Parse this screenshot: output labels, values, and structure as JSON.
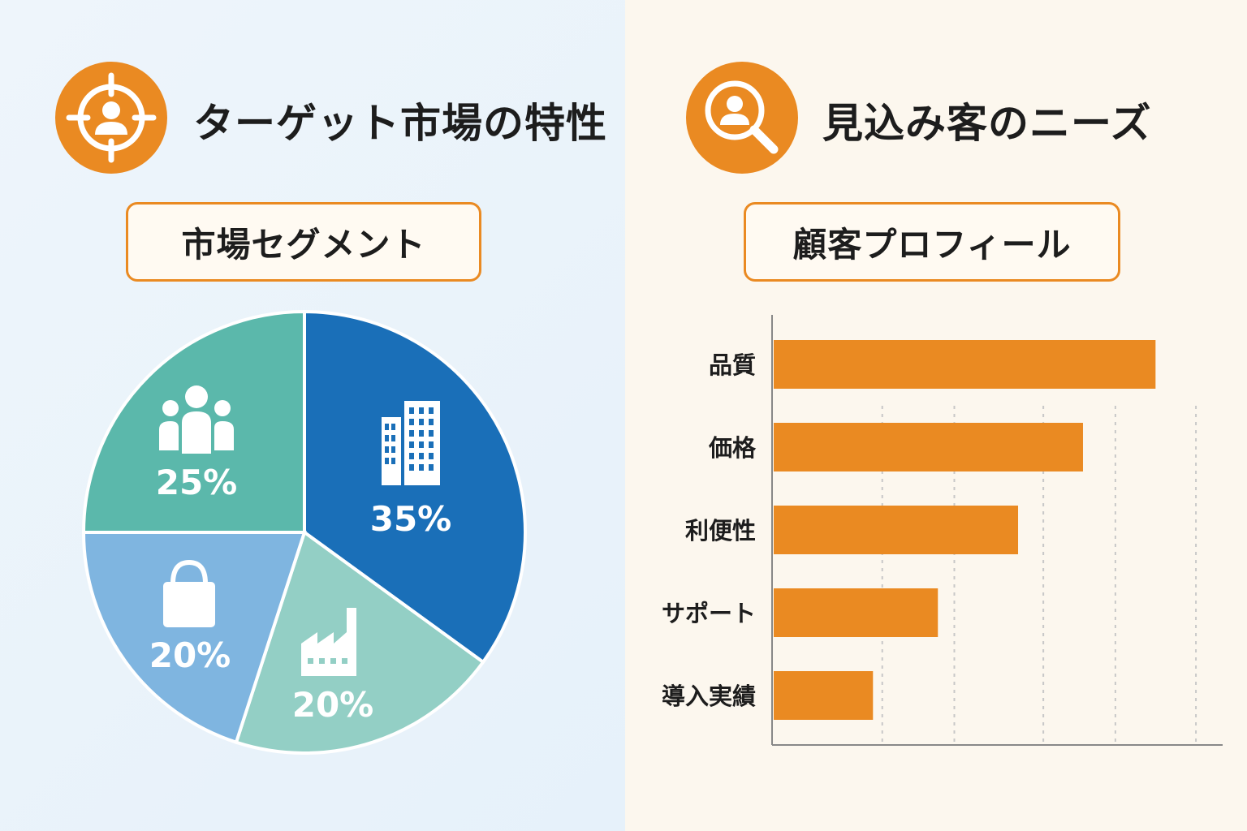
{
  "left": {
    "title": "ターゲット市場の特性",
    "subtitle": "市場セグメント",
    "icon": "target-person-icon"
  },
  "right": {
    "title": "見込み客のニーズ",
    "subtitle": "顧客プロフィール",
    "icon": "magnifier-person-icon"
  },
  "colors": {
    "accent": "#ea8a22",
    "pie_blue": "#1a6fb8",
    "pie_light_teal": "#93cfc5",
    "pie_light_blue": "#7fb5e0",
    "pie_teal": "#5bb8ab",
    "bar": "#ea8a22"
  },
  "chart_data": [
    {
      "type": "pie",
      "slices": [
        {
          "label": "35%",
          "value": 35,
          "icon": "building-icon",
          "color": "#1a6fb8"
        },
        {
          "label": "20%",
          "value": 20,
          "icon": "factory-icon",
          "color": "#93cfc5"
        },
        {
          "label": "20%",
          "value": 20,
          "icon": "shopping-bag-icon",
          "color": "#7fb5e0"
        },
        {
          "label": "25%",
          "value": 25,
          "icon": "people-group-icon",
          "color": "#5bb8ab"
        }
      ]
    },
    {
      "type": "bar",
      "orientation": "horizontal",
      "categories": [
        "品質",
        "価格",
        "利便性",
        "サポート",
        "導入実績"
      ],
      "values": [
        100,
        81,
        64,
        43,
        26
      ],
      "xlim": [
        0,
        118
      ],
      "grid": "vertical dotted"
    }
  ]
}
